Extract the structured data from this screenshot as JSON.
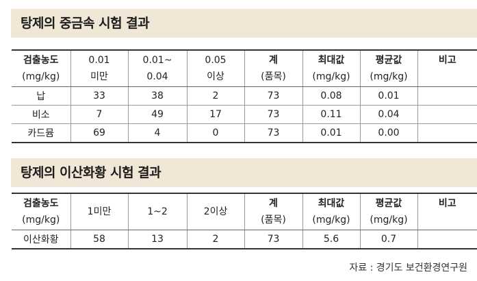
{
  "table1": {
    "title": "탕제의 중금속 시험 결과",
    "headers": [
      [
        "검출농도",
        "(mg/kg)"
      ],
      [
        "0.01",
        "미만"
      ],
      [
        "0.01~",
        "0.04"
      ],
      [
        "0.05",
        "이상"
      ],
      [
        "계",
        "(품목)"
      ],
      [
        "최대값",
        "(mg/kg)"
      ],
      [
        "평균값",
        "(mg/kg)"
      ],
      [
        "비고",
        ""
      ]
    ],
    "rows": [
      [
        "납",
        "33",
        "38",
        "2",
        "73",
        "0.08",
        "0.01",
        ""
      ],
      [
        "비소",
        "7",
        "49",
        "17",
        "73",
        "0.11",
        "0.04",
        ""
      ],
      [
        "카드뮴",
        "69",
        "4",
        "0",
        "73",
        "0.01",
        "0.00",
        ""
      ]
    ]
  },
  "table2": {
    "title": "탕제의 이산화황 시험 결과",
    "headers": [
      [
        "검출농도",
        "(mg/kg)"
      ],
      [
        "1미만",
        ""
      ],
      [
        "1~2",
        ""
      ],
      [
        "2이상",
        ""
      ],
      [
        "계",
        "(품목)"
      ],
      [
        "최대값",
        "(mg/kg)"
      ],
      [
        "평균값",
        "(mg/kg)"
      ],
      [
        "비고",
        ""
      ]
    ],
    "rows": [
      [
        "이산화황",
        "58",
        "13",
        "2",
        "73",
        "5.6",
        "0.7",
        ""
      ]
    ]
  },
  "source": "자료 : 경기도 보건환경연구원"
}
